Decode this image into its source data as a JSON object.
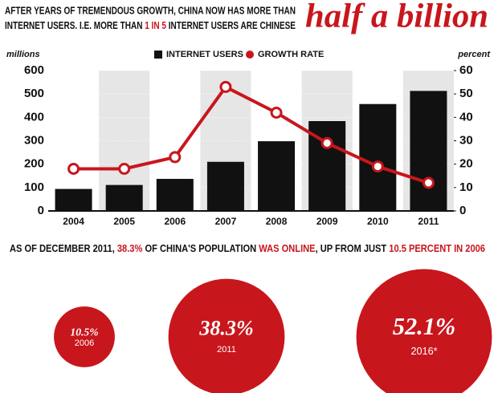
{
  "header": {
    "line1": "AFTER YEARS OF TREMENDOUS GROWTH, CHINA NOW HAS MORE THAN",
    "line2": [
      "INTERNET USERS. I.E. MORE THAN ",
      "1 IN 5",
      " INTERNET USERS ARE CHINESE"
    ],
    "highlight": "half a billion"
  },
  "subheader": [
    "AS OF DECEMBER 2011, ",
    "38.3%",
    " OF CHINA'S POPULATION ",
    "WAS ONLINE",
    ", UP FROM JUST ",
    "10.5 PERCENT IN 2006"
  ],
  "chart_data": [
    {
      "type": "bar",
      "y_label": "millions",
      "y2_label": "percent",
      "categories": [
        "2004",
        "2005",
        "2006",
        "2007",
        "2008",
        "2009",
        "2010",
        "2011"
      ],
      "series": [
        {
          "name": "INTERNET USERS",
          "color": "#111111",
          "values": [
            94,
            111,
            137,
            210,
            298,
            384,
            457,
            513
          ]
        },
        {
          "name": "GROWTH RATE",
          "color": "#c8161d",
          "type": "line",
          "axis": "y2",
          "values": [
            18,
            18,
            23,
            53,
            42,
            29,
            19,
            12
          ]
        }
      ],
      "ylim": [
        0,
        600
      ],
      "yticks": [
        0,
        100,
        200,
        300,
        400,
        500,
        600
      ],
      "y2lim": [
        0,
        60
      ],
      "y2ticks": [
        0,
        10,
        20,
        30,
        40,
        50,
        60
      ]
    },
    {
      "type": "bubble",
      "color": "#c8161d",
      "categories": [
        "2006",
        "2011",
        "2016*"
      ],
      "values": [
        10.5,
        38.3,
        52.1
      ],
      "value_labels": [
        "10.5%",
        "38.3%",
        "52.1%"
      ]
    }
  ]
}
